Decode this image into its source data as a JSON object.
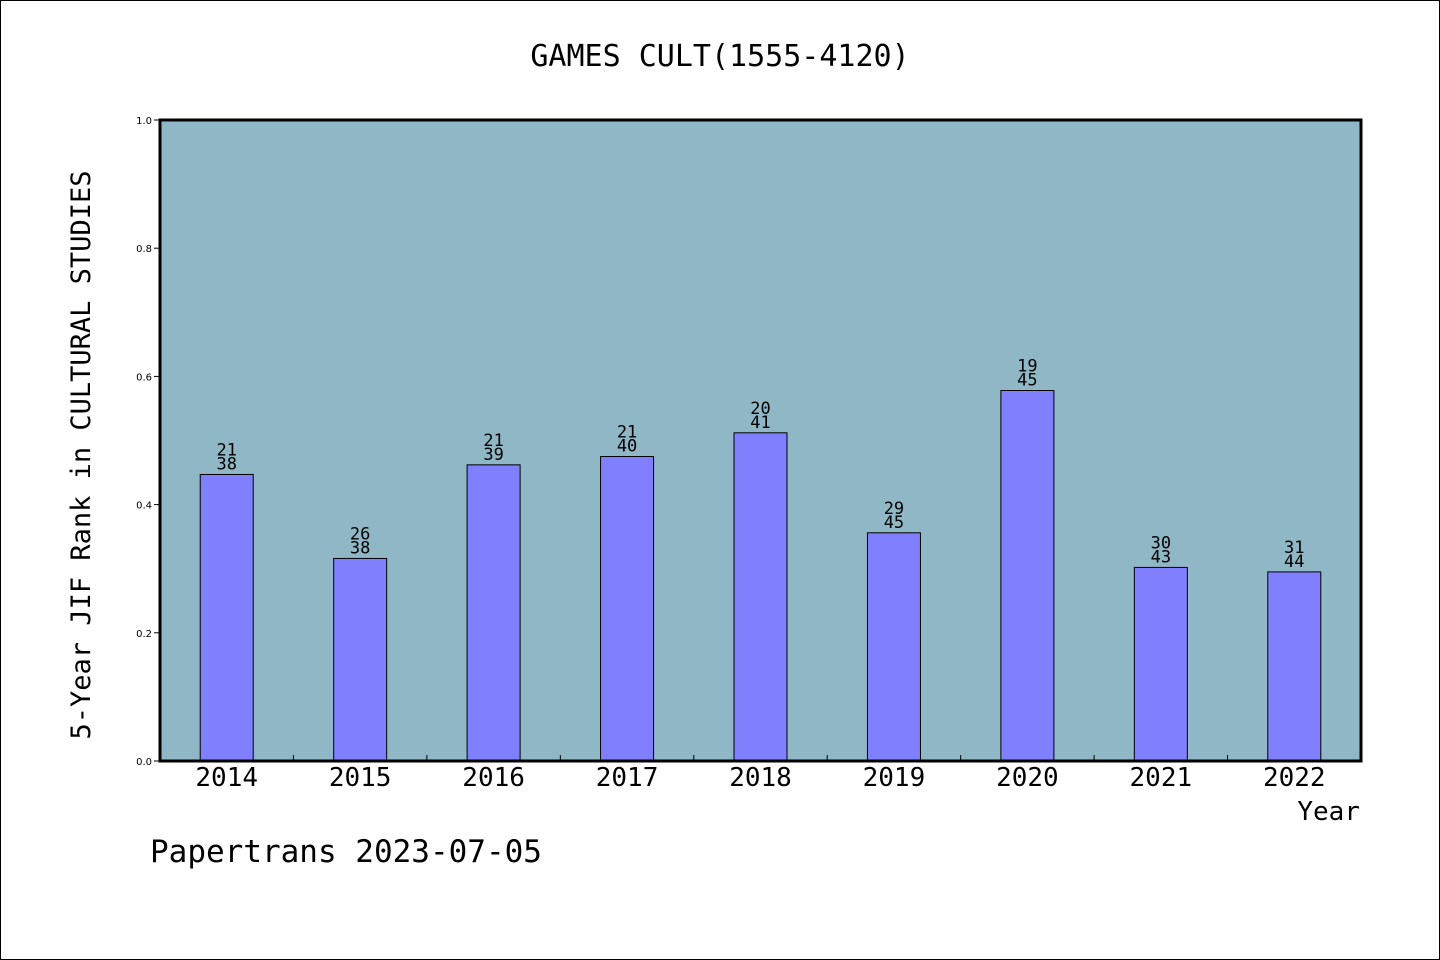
{
  "chart_data": {
    "type": "bar",
    "title": "GAMES CULT(1555-4120)",
    "xlabel": "Year",
    "ylabel": "5-Year JIF Rank in CULTURAL STUDIES",
    "ylim": [
      0,
      1.0
    ],
    "yticks": [
      "0.0",
      "0.2",
      "0.4",
      "0.6",
      "0.8",
      "1.0"
    ],
    "categories": [
      "2014",
      "2015",
      "2016",
      "2017",
      "2018",
      "2019",
      "2020",
      "2021",
      "2022"
    ],
    "values": [
      0.447,
      0.316,
      0.462,
      0.475,
      0.512,
      0.356,
      0.578,
      0.302,
      0.295
    ],
    "bar_labels": [
      [
        "21",
        "38"
      ],
      [
        "26",
        "38"
      ],
      [
        "21",
        "39"
      ],
      [
        "21",
        "40"
      ],
      [
        "20",
        "41"
      ],
      [
        "29",
        "45"
      ],
      [
        "19",
        "45"
      ],
      [
        "30",
        "43"
      ],
      [
        "31",
        "44"
      ]
    ],
    "grid": false,
    "plot_background": "#8fb7c5",
    "bar_color": "#8080ff"
  },
  "footer": "Papertrans 2023-07-05"
}
